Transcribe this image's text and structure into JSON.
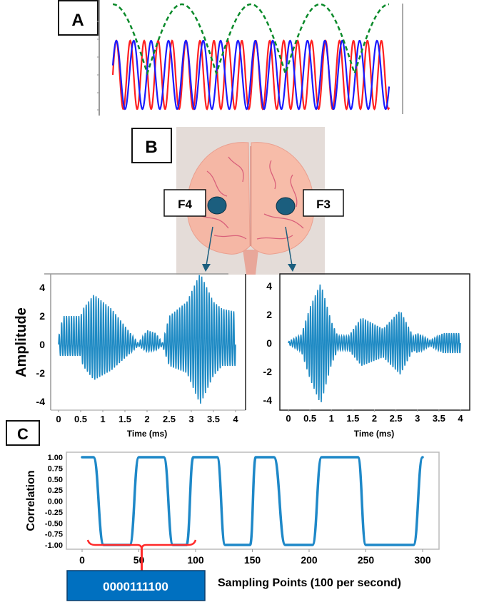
{
  "panels": {
    "a_label": "A",
    "b_label": "B",
    "c_label": "C"
  },
  "electrodes": {
    "left": "F4",
    "right": "F3"
  },
  "colors": {
    "red": "#ff2020",
    "blue": "#1a1aff",
    "green": "#0a8a2a",
    "eeg": "#1e8ac4",
    "correlation": "#1e88c8",
    "bracket": "#ff2a2a",
    "code_box": "#0070c0",
    "electrode": "#1b5e7e"
  },
  "code_box": {
    "text": "0000111100"
  },
  "chart_data": [
    {
      "id": "panel-a",
      "type": "line",
      "title": "",
      "series": [
        {
          "color": "red",
          "style": "solid",
          "cycles_shown": 19.8
        },
        {
          "color": "blue",
          "style": "solid",
          "cycles_shown": 15.9
        },
        {
          "color": "green",
          "style": "dashed",
          "kind": "beat envelope",
          "humps_shown": 4
        }
      ]
    },
    {
      "id": "eeg-f4",
      "type": "line",
      "xlabel": "Time (ms)",
      "ylabel": "Amplitude",
      "xlim": [
        0,
        4
      ],
      "ylim": [
        -4,
        4
      ],
      "xticks": [
        "0",
        "0.5",
        "1",
        "1.5",
        "2",
        "2.5",
        "3",
        "3.5",
        "4"
      ],
      "yticks": [
        "4",
        "2",
        "0",
        "-2",
        "-4"
      ],
      "envelope": {
        "t": [
          0,
          0.1,
          0.5,
          0.55,
          0.8,
          1.2,
          1.8,
          2.0,
          2.2,
          2.35,
          2.5,
          2.9,
          3.2,
          3.5,
          3.7,
          4.0
        ],
        "upper": [
          0.5,
          2.0,
          2.0,
          2.5,
          3.5,
          2.5,
          0.1,
          1.0,
          0.8,
          0.1,
          2.0,
          3.0,
          5.0,
          3.0,
          2.5,
          2.3
        ],
        "lower": [
          -0.8,
          -0.8,
          -0.8,
          -1.5,
          -2.5,
          -1.8,
          -0.1,
          -0.5,
          -0.4,
          -0.1,
          -1.5,
          -2.0,
          -4.2,
          -2.2,
          -1.5,
          -1.5
        ]
      }
    },
    {
      "id": "eeg-f3",
      "type": "line",
      "xlabel": "Time (ms)",
      "xlim": [
        0,
        4
      ],
      "ylim": [
        -4,
        4
      ],
      "xticks": [
        "0",
        "0.5",
        "1",
        "1.5",
        "2",
        "2.5",
        "3",
        "3.5",
        "4"
      ],
      "yticks": [
        "4",
        "2",
        "0",
        "-2",
        "-4"
      ],
      "envelope": {
        "t": [
          0,
          0.3,
          0.5,
          0.75,
          1.0,
          1.15,
          1.4,
          1.7,
          2.2,
          2.6,
          2.9,
          3.0,
          3.3,
          3.6,
          4.0
        ],
        "upper": [
          0.1,
          0.6,
          2.5,
          4.2,
          1.5,
          0.5,
          0.5,
          1.8,
          1.0,
          2.3,
          0.5,
          0.7,
          0.2,
          0.7,
          0.7
        ],
        "lower": [
          -0.1,
          -0.6,
          -2.5,
          -4.3,
          -1.5,
          -0.5,
          -0.5,
          -1.6,
          -1.0,
          -2.2,
          -0.5,
          -0.7,
          -0.2,
          -0.7,
          -0.7
        ]
      }
    },
    {
      "id": "correlation",
      "type": "line",
      "xlabel": "Sampling Points (100 per second)",
      "ylabel": "Correlation",
      "xlim": [
        0,
        300
      ],
      "ylim": [
        -1,
        1
      ],
      "xticks": [
        "0",
        "50",
        "100",
        "150",
        "200",
        "250",
        "300"
      ],
      "yticks": [
        "1.00",
        "0.75",
        "0.50",
        "0.25",
        "0.00",
        "-0.25",
        "-0.50",
        "-0.75",
        "-1.00"
      ],
      "x": [
        0,
        10,
        19,
        42,
        50,
        72,
        80,
        92,
        98,
        119,
        126,
        148,
        153,
        169,
        179,
        203,
        211,
        243,
        250,
        292,
        300
      ],
      "y": [
        1,
        1,
        -1,
        -1,
        1,
        1,
        -1,
        -1,
        1,
        1,
        -1,
        -1,
        1,
        1,
        -1,
        -1,
        1,
        1,
        -1,
        -1,
        1
      ],
      "bracket_range": [
        5,
        100
      ]
    }
  ]
}
